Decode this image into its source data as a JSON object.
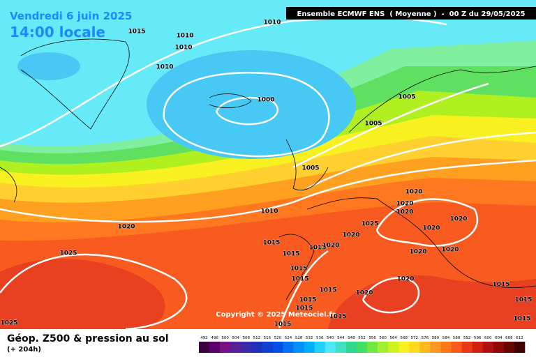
{
  "header": {
    "date": "Vendredi 6 juin 2025",
    "time": "14:00 locale",
    "model": "Ensemble ECMWF ENS  ( Moyenne )  -  00 Z du 29/05/2025"
  },
  "copyright": "Copyright © 2025 Meteociel.fr",
  "footer": {
    "title": "Géop. Z500 & pression au sol",
    "lead": "(+ 204h)"
  },
  "isobar_labels": [
    1015,
    1010,
    1010,
    1010,
    1010,
    1000,
    1005,
    1005,
    1005,
    1010,
    1020,
    1025,
    1015,
    1015,
    1015,
    1020,
    1020,
    1025,
    1020,
    1020,
    1020,
    1020,
    1020,
    1020,
    1020,
    1020,
    1015,
    1015,
    1015,
    1020,
    1015,
    1015,
    1015,
    1015,
    1015,
    1015,
    1015,
    1025
  ],
  "legend": {
    "ticks": [
      492,
      496,
      500,
      504,
      508,
      512,
      516,
      520,
      524,
      528,
      532,
      536,
      540,
      544,
      548,
      552,
      556,
      560,
      564,
      568,
      572,
      576,
      580,
      584,
      588,
      592,
      596,
      600,
      604,
      608,
      612
    ],
    "colors": [
      "#3a0040",
      "#5a006a",
      "#7a1088",
      "#5a2098",
      "#3c2aa8",
      "#2030b8",
      "#1040d0",
      "#0050e8",
      "#0070f8",
      "#0090ff",
      "#00b0ff",
      "#20d0ff",
      "#50e8f8",
      "#40e0c0",
      "#30d890",
      "#40e060",
      "#70e840",
      "#a0f030",
      "#d0f020",
      "#f8f020",
      "#ffd820",
      "#ffb820",
      "#ff9820",
      "#ff7818",
      "#f85818",
      "#e83818",
      "#d02010",
      "#b01010",
      "#900808",
      "#680404",
      "#400000"
    ]
  }
}
